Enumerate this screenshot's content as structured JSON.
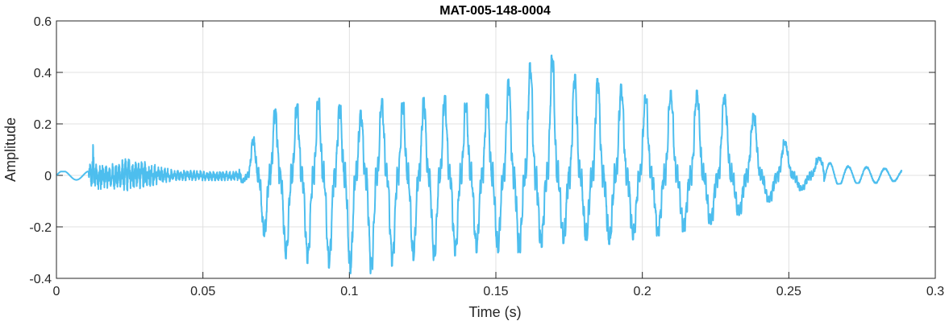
{
  "chart_data": {
    "type": "line",
    "title": "MAT-005-148-0004",
    "xlabel": "Time (s)",
    "ylabel": "Amplitude",
    "xlim": [
      0,
      0.3
    ],
    "ylim": [
      -0.4,
      0.6
    ],
    "xticks": [
      0,
      0.05,
      0.1,
      0.15,
      0.2,
      0.25,
      0.3
    ],
    "xtick_labels": [
      "0",
      "0.05",
      "0.1",
      "0.15",
      "0.2",
      "0.25",
      "0.3"
    ],
    "yticks": [
      -0.4,
      -0.2,
      0,
      0.2,
      0.4,
      0.6
    ],
    "ytick_labels": [
      "-0.4",
      "-0.2",
      "0",
      "0.2",
      "0.4",
      "0.6"
    ],
    "grid": true,
    "line_color": "#4DBEEE",
    "duration": 0.2885,
    "envelope": {
      "t": [
        0,
        0.011,
        0.0125,
        0.0135,
        0.018,
        0.025,
        0.04,
        0.06,
        0.0645,
        0.066,
        0.07,
        0.075,
        0.08,
        0.09,
        0.1,
        0.105,
        0.11,
        0.12,
        0.13,
        0.14,
        0.15,
        0.16,
        0.165,
        0.17,
        0.175,
        0.18,
        0.19,
        0.2,
        0.21,
        0.22,
        0.23,
        0.24,
        0.25,
        0.26,
        0.27,
        0.28,
        0.2885
      ],
      "max": [
        0.015,
        0.015,
        0.12,
        0.05,
        0.04,
        0.07,
        0.02,
        0.015,
        0.03,
        0.12,
        0.2,
        0.26,
        0.27,
        0.3,
        0.26,
        0.25,
        0.3,
        0.28,
        0.32,
        0.28,
        0.33,
        0.43,
        0.45,
        0.47,
        0.4,
        0.38,
        0.37,
        0.31,
        0.33,
        0.33,
        0.31,
        0.22,
        0.12,
        0.07,
        0.04,
        0.03,
        0.02
      ],
      "min": [
        -0.02,
        -0.02,
        -0.07,
        -0.06,
        -0.05,
        -0.06,
        -0.02,
        -0.02,
        -0.03,
        -0.1,
        -0.22,
        -0.31,
        -0.33,
        -0.35,
        -0.38,
        -0.39,
        -0.37,
        -0.33,
        -0.33,
        -0.3,
        -0.3,
        -0.3,
        -0.28,
        -0.27,
        -0.26,
        -0.25,
        -0.27,
        -0.24,
        -0.23,
        -0.2,
        -0.17,
        -0.12,
        -0.07,
        -0.04,
        -0.03,
        -0.03,
        -0.02
      ]
    }
  }
}
